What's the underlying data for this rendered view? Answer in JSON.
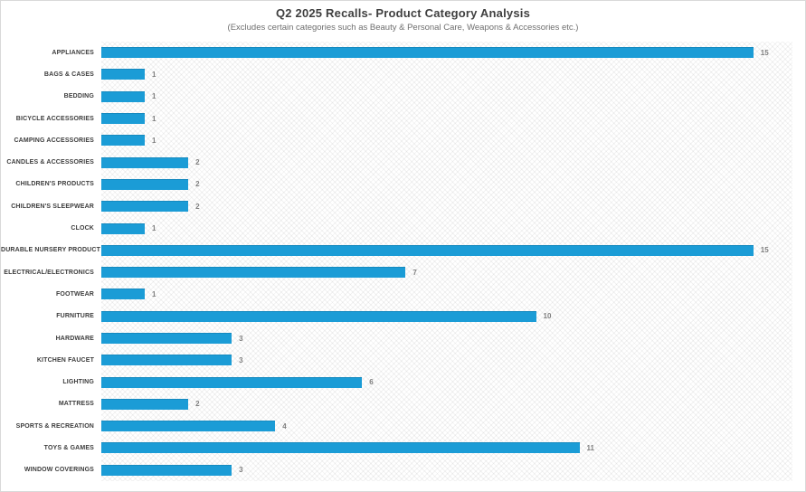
{
  "header": {
    "title": "Q2 2025 Recalls- Product Category Analysis",
    "subtitle": "(Excludes certain categories such as Beauty & Personal Care, Weapons & Accessories etc.)"
  },
  "chart_data": {
    "type": "bar",
    "orientation": "horizontal",
    "title": "Q2 2025 Recalls- Product Category Analysis",
    "subtitle": "(Excludes certain categories such as Beauty & Personal Care, Weapons & Accessories etc.)",
    "categories": [
      "APPLIANCES",
      "BAGS & CASES",
      "BEDDING",
      "BICYCLE ACCESSORIES",
      "CAMPING ACCESSORIES",
      "CANDLES & ACCESSORIES",
      "CHILDREN'S PRODUCTS",
      "CHILDREN'S SLEEPWEAR",
      "CLOCK",
      "DURABLE NURSERY PRODUCT",
      "ELECTRICAL/ELECTRONICS",
      "FOOTWEAR",
      "FURNITURE",
      "HARDWARE",
      "KITCHEN FAUCET",
      "LIGHTING",
      "MATTRESS",
      "SPORTS & RECREATION",
      "TOYS & GAMES",
      "WINDOW COVERINGS"
    ],
    "values": [
      15,
      1,
      1,
      1,
      1,
      2,
      2,
      2,
      1,
      15,
      7,
      1,
      10,
      3,
      3,
      6,
      2,
      4,
      11,
      3
    ],
    "xlabel": "",
    "ylabel": "",
    "xlim": [
      0,
      15.9
    ],
    "grid": false,
    "data_labels": true,
    "legend": false,
    "bar_color": "#1b9cd6",
    "value_label_color": "#7f7f7f",
    "plot_background": "diagonal-crosshatch"
  }
}
